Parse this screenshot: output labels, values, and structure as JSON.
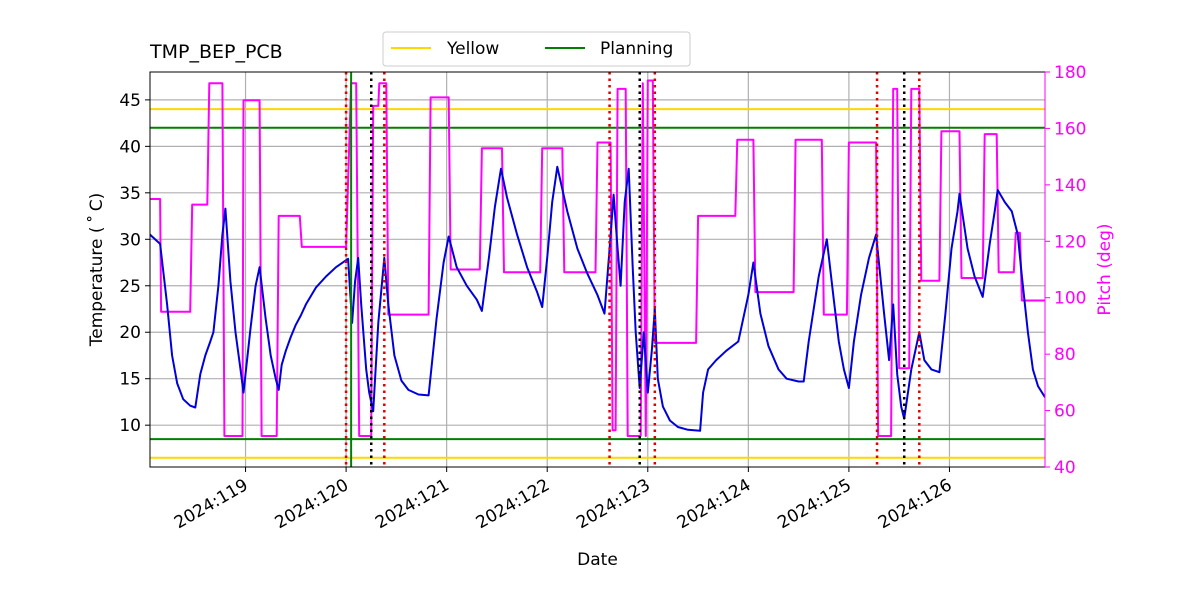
{
  "chart_data": {
    "type": "line",
    "title": "TMP_BEP_PCB",
    "xlabel": "Date",
    "ylabel": "Temperature ($^\\circ$C)",
    "ylabel_display": "Temperature ( ˚ C)",
    "y2label": "Pitch (deg)",
    "xlim": [
      118.05,
      126.95
    ],
    "ylim": [
      5.5,
      48
    ],
    "y2lim": [
      40,
      180
    ],
    "x_ticks": [
      119,
      120,
      121,
      122,
      123,
      124,
      125,
      126
    ],
    "x_tick_labels": [
      "2024:119",
      "2024:120",
      "2024:121",
      "2024:122",
      "2024:123",
      "2024:124",
      "2024:125",
      "2024:126"
    ],
    "y_ticks": [
      10,
      15,
      20,
      25,
      30,
      35,
      40,
      45
    ],
    "y_tick_labels": [
      "10",
      "15",
      "20",
      "25",
      "30",
      "35",
      "40",
      "45"
    ],
    "y2_ticks": [
      40,
      60,
      80,
      100,
      120,
      140,
      160,
      180
    ],
    "y2_tick_labels": [
      "40",
      "60",
      "80",
      "100",
      "120",
      "140",
      "160",
      "180"
    ],
    "grid": true,
    "legend": {
      "placement": "top-center",
      "entries": [
        {
          "label": "Yellow",
          "color": "#ffd700"
        },
        {
          "label": "Planning",
          "color": "#008000"
        }
      ]
    },
    "limits": {
      "yellow": [
        6.5,
        44
      ],
      "planning": [
        8.5,
        42
      ],
      "yellow_color": "#ffd700",
      "planning_color": "#008000"
    },
    "vertical_lines": {
      "red_dotted": [
        120.0,
        120.38,
        122.62,
        123.07,
        125.28,
        125.7
      ],
      "black_dotted": [
        120.25,
        122.92,
        125.55
      ],
      "green_solid": [
        120.05
      ],
      "red_color": "#e00000",
      "black_color": "#000000"
    },
    "series": [
      {
        "name": "Temperature",
        "axis": "left",
        "color": "#0000dd",
        "points": [
          [
            118.05,
            30.5
          ],
          [
            118.15,
            29.5
          ],
          [
            118.22,
            23.0
          ],
          [
            118.27,
            17.5
          ],
          [
            118.32,
            14.5
          ],
          [
            118.38,
            12.8
          ],
          [
            118.45,
            12.1
          ],
          [
            118.5,
            11.9
          ],
          [
            118.55,
            15.5
          ],
          [
            118.6,
            17.5
          ],
          [
            118.65,
            19.0
          ],
          [
            118.68,
            20.0
          ],
          [
            118.73,
            25.0
          ],
          [
            118.77,
            30.5
          ],
          [
            118.8,
            33.3
          ],
          [
            118.85,
            25.5
          ],
          [
            118.9,
            20.0
          ],
          [
            118.95,
            16.0
          ],
          [
            118.98,
            13.5
          ],
          [
            119.05,
            20.5
          ],
          [
            119.1,
            25.0
          ],
          [
            119.14,
            27.0
          ],
          [
            119.2,
            21.5
          ],
          [
            119.25,
            17.5
          ],
          [
            119.3,
            15.0
          ],
          [
            119.33,
            13.8
          ],
          [
            119.36,
            16.5
          ],
          [
            119.4,
            18.0
          ],
          [
            119.45,
            19.5
          ],
          [
            119.5,
            20.8
          ],
          [
            119.55,
            21.8
          ],
          [
            119.6,
            23.0
          ],
          [
            119.7,
            24.8
          ],
          [
            119.8,
            26.0
          ],
          [
            119.9,
            27.0
          ],
          [
            119.98,
            27.6
          ],
          [
            120.02,
            27.9
          ],
          [
            120.06,
            21.0
          ],
          [
            120.09,
            25.5
          ],
          [
            120.12,
            28.0
          ],
          [
            120.15,
            23.0
          ],
          [
            120.2,
            16.0
          ],
          [
            120.23,
            13.5
          ],
          [
            120.27,
            11.5
          ],
          [
            120.32,
            21.0
          ],
          [
            120.38,
            28.0
          ],
          [
            120.42,
            23.0
          ],
          [
            120.48,
            17.5
          ],
          [
            120.55,
            14.8
          ],
          [
            120.62,
            13.8
          ],
          [
            120.72,
            13.3
          ],
          [
            120.82,
            13.2
          ],
          [
            120.9,
            21.5
          ],
          [
            120.97,
            27.5
          ],
          [
            121.02,
            30.3
          ],
          [
            121.1,
            27.0
          ],
          [
            121.2,
            25.0
          ],
          [
            121.3,
            23.5
          ],
          [
            121.35,
            22.3
          ],
          [
            121.42,
            28.0
          ],
          [
            121.48,
            33.5
          ],
          [
            121.52,
            36.2
          ],
          [
            121.54,
            37.6
          ],
          [
            121.6,
            34.5
          ],
          [
            121.7,
            30.5
          ],
          [
            121.8,
            27.0
          ],
          [
            121.9,
            24.3
          ],
          [
            121.95,
            22.7
          ],
          [
            122.0,
            28.0
          ],
          [
            122.05,
            34.0
          ],
          [
            122.1,
            37.8
          ],
          [
            122.2,
            33.0
          ],
          [
            122.3,
            29.0
          ],
          [
            122.4,
            26.3
          ],
          [
            122.5,
            24.0
          ],
          [
            122.57,
            22.0
          ],
          [
            122.62,
            29.0
          ],
          [
            122.66,
            34.8
          ],
          [
            122.7,
            29.0
          ],
          [
            122.73,
            25.0
          ],
          [
            122.77,
            34.0
          ],
          [
            122.81,
            37.6
          ],
          [
            122.85,
            27.0
          ],
          [
            122.88,
            20.0
          ],
          [
            122.92,
            14.0
          ],
          [
            122.96,
            20.0
          ],
          [
            123.0,
            13.5
          ],
          [
            123.04,
            18.0
          ],
          [
            123.07,
            22.5
          ],
          [
            123.1,
            15.0
          ],
          [
            123.15,
            12.0
          ],
          [
            123.22,
            10.5
          ],
          [
            123.3,
            9.8
          ],
          [
            123.4,
            9.5
          ],
          [
            123.52,
            9.4
          ],
          [
            123.55,
            13.5
          ],
          [
            123.6,
            16.0
          ],
          [
            123.68,
            17.0
          ],
          [
            123.78,
            18.0
          ],
          [
            123.9,
            19.0
          ],
          [
            124.0,
            24.0
          ],
          [
            124.05,
            27.5
          ],
          [
            124.12,
            22.0
          ],
          [
            124.2,
            18.5
          ],
          [
            124.3,
            16.0
          ],
          [
            124.38,
            15.0
          ],
          [
            124.5,
            14.7
          ],
          [
            124.55,
            14.7
          ],
          [
            124.6,
            19.0
          ],
          [
            124.65,
            22.5
          ],
          [
            124.7,
            26.0
          ],
          [
            124.75,
            28.5
          ],
          [
            124.78,
            30.0
          ],
          [
            124.85,
            23.5
          ],
          [
            124.9,
            19.0
          ],
          [
            124.95,
            16.0
          ],
          [
            125.0,
            14.0
          ],
          [
            125.05,
            19.0
          ],
          [
            125.12,
            24.0
          ],
          [
            125.2,
            28.0
          ],
          [
            125.27,
            30.5
          ],
          [
            125.35,
            22.0
          ],
          [
            125.4,
            17.0
          ],
          [
            125.44,
            23.0
          ],
          [
            125.48,
            15.5
          ],
          [
            125.52,
            12.0
          ],
          [
            125.55,
            10.7
          ],
          [
            125.62,
            16.0
          ],
          [
            125.7,
            20.0
          ],
          [
            125.75,
            17.0
          ],
          [
            125.82,
            16.0
          ],
          [
            125.9,
            15.7
          ],
          [
            125.96,
            22.0
          ],
          [
            126.02,
            29.0
          ],
          [
            126.08,
            33.0
          ],
          [
            126.1,
            34.9
          ],
          [
            126.18,
            29.0
          ],
          [
            126.25,
            26.0
          ],
          [
            126.33,
            23.8
          ],
          [
            126.4,
            29.5
          ],
          [
            126.45,
            33.0
          ],
          [
            126.48,
            35.3
          ],
          [
            126.55,
            34.0
          ],
          [
            126.62,
            33.0
          ],
          [
            126.68,
            30.5
          ],
          [
            126.72,
            26.0
          ],
          [
            126.78,
            20.0
          ],
          [
            126.83,
            16.0
          ],
          [
            126.88,
            14.2
          ],
          [
            126.95,
            13.0
          ]
        ]
      },
      {
        "name": "Pitch",
        "axis": "right",
        "color": "#ff00ff",
        "points": [
          [
            118.05,
            135
          ],
          [
            118.15,
            135
          ],
          [
            118.16,
            95
          ],
          [
            118.45,
            95
          ],
          [
            118.47,
            133
          ],
          [
            118.62,
            133
          ],
          [
            118.64,
            176
          ],
          [
            118.77,
            176
          ],
          [
            118.79,
            51
          ],
          [
            118.97,
            51
          ],
          [
            118.98,
            170
          ],
          [
            119.14,
            170
          ],
          [
            119.16,
            51
          ],
          [
            119.31,
            51
          ],
          [
            119.33,
            129
          ],
          [
            119.54,
            129
          ],
          [
            119.56,
            118
          ],
          [
            120.0,
            118
          ],
          [
            120.05,
            176
          ],
          [
            120.1,
            176
          ],
          [
            120.13,
            51
          ],
          [
            120.25,
            51
          ],
          [
            120.27,
            168
          ],
          [
            120.32,
            168
          ],
          [
            120.33,
            176
          ],
          [
            120.4,
            176
          ],
          [
            120.42,
            94
          ],
          [
            120.82,
            94
          ],
          [
            120.84,
            171
          ],
          [
            121.02,
            171
          ],
          [
            121.04,
            110
          ],
          [
            121.33,
            110
          ],
          [
            121.35,
            153
          ],
          [
            121.55,
            153
          ],
          [
            121.57,
            109
          ],
          [
            121.93,
            109
          ],
          [
            121.95,
            153
          ],
          [
            122.15,
            153
          ],
          [
            122.17,
            109
          ],
          [
            122.48,
            109
          ],
          [
            122.5,
            155
          ],
          [
            122.63,
            155
          ],
          [
            122.65,
            53
          ],
          [
            122.68,
            53
          ],
          [
            122.7,
            174
          ],
          [
            122.78,
            174
          ],
          [
            122.8,
            51
          ],
          [
            122.93,
            51
          ],
          [
            122.95,
            176
          ],
          [
            122.98,
            51
          ],
          [
            123.0,
            177
          ],
          [
            123.05,
            177
          ],
          [
            123.07,
            84
          ],
          [
            123.48,
            84
          ],
          [
            123.5,
            129
          ],
          [
            123.87,
            129
          ],
          [
            123.89,
            156
          ],
          [
            124.05,
            156
          ],
          [
            124.07,
            102
          ],
          [
            124.45,
            102
          ],
          [
            124.47,
            156
          ],
          [
            124.73,
            156
          ],
          [
            124.75,
            94
          ],
          [
            124.98,
            94
          ],
          [
            125.0,
            155
          ],
          [
            125.27,
            155
          ],
          [
            125.29,
            51
          ],
          [
            125.42,
            51
          ],
          [
            125.44,
            174
          ],
          [
            125.48,
            174
          ],
          [
            125.5,
            75
          ],
          [
            125.6,
            75
          ],
          [
            125.62,
            174
          ],
          [
            125.7,
            174
          ],
          [
            125.72,
            106
          ],
          [
            125.9,
            106
          ],
          [
            125.92,
            159
          ],
          [
            126.1,
            159
          ],
          [
            126.12,
            107
          ],
          [
            126.33,
            107
          ],
          [
            126.35,
            158
          ],
          [
            126.47,
            158
          ],
          [
            126.49,
            109
          ],
          [
            126.64,
            109
          ],
          [
            126.66,
            123
          ],
          [
            126.7,
            123
          ],
          [
            126.72,
            99
          ],
          [
            126.95,
            99
          ]
        ]
      }
    ]
  }
}
